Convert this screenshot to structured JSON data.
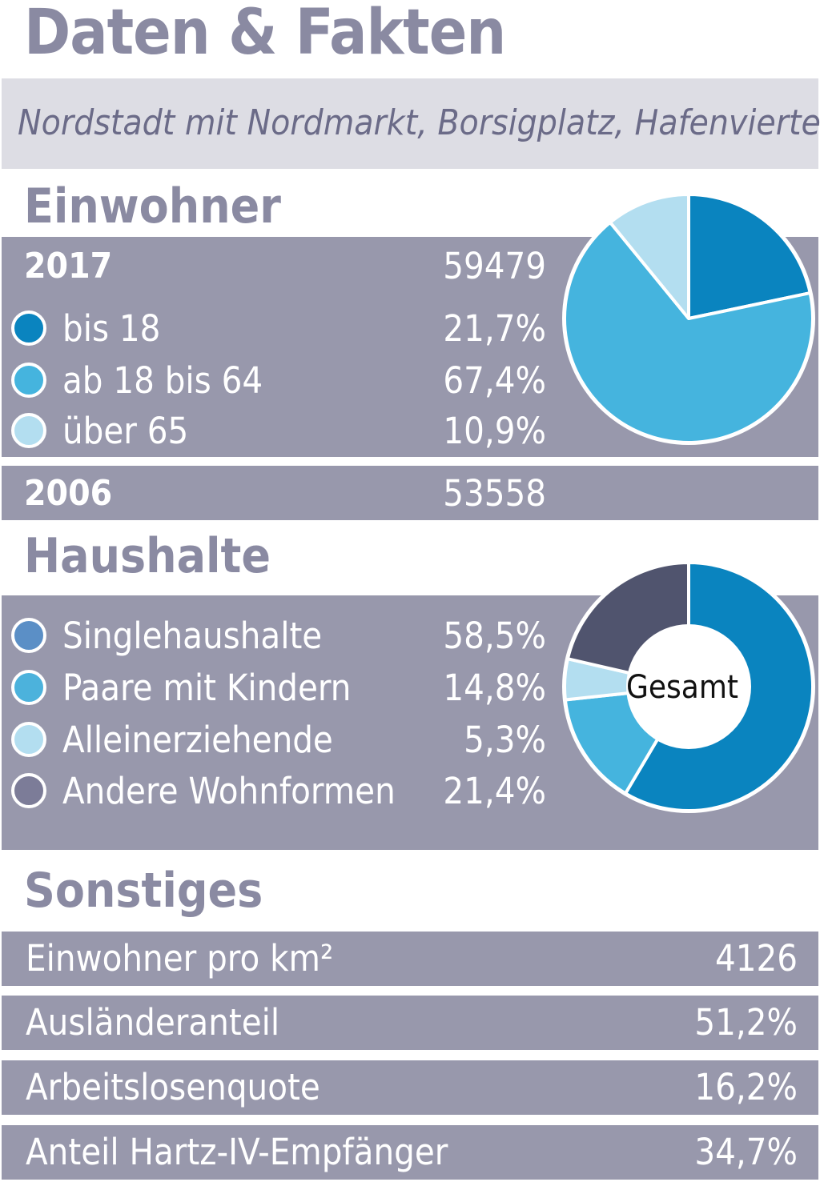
{
  "title": "Daten & Fakten",
  "subtitle": "Nordstadt mit Nordmarkt, Borsigplatz, Hafenviertel",
  "einwohner": {
    "heading": "Einwohner",
    "year_2017": {
      "label": "2017",
      "value": "59479"
    },
    "year_2006": {
      "label": "2006",
      "value": "53558"
    },
    "items": [
      {
        "label": "bis 18",
        "value": "21,7%",
        "color": "#0a84bf"
      },
      {
        "label": "ab 18 bis 64",
        "value": "67,4%",
        "color": "#45b4de"
      },
      {
        "label": "über 65",
        "value": "10,9%",
        "color": "#b3def0"
      }
    ]
  },
  "haushalte": {
    "heading": "Haushalte",
    "items": [
      {
        "label": "Singlehaushalte",
        "value": "58,5%",
        "color": "#5b8fc6"
      },
      {
        "label": "Paare mit Kindern",
        "value": "14,8%",
        "color": "#4cb2dc"
      },
      {
        "label": "Alleinerziehende",
        "value": "5,3%",
        "color": "#b3def0"
      },
      {
        "label": "Andere Wohnformen",
        "value": "21,4%",
        "color": "#7c7c98"
      }
    ],
    "center_label": "Gesamt"
  },
  "sonstiges": {
    "heading": "Sonstiges",
    "rows": [
      {
        "label": "Einwohner pro km²",
        "value": "4126"
      },
      {
        "label": "Ausländeranteil",
        "value": "51,2%"
      },
      {
        "label": "Arbeitslosenquote",
        "value": "16,2%"
      },
      {
        "label": "Anteil Hartz-IV-Empfänger",
        "value": "34,7%"
      }
    ]
  },
  "chart_data": [
    {
      "type": "pie",
      "title": "Einwohner 2017",
      "categories": [
        "bis 18",
        "ab 18 bis 64",
        "über 65"
      ],
      "values": [
        21.7,
        67.4,
        10.9
      ],
      "colors": [
        "#0a84bf",
        "#45b4de",
        "#b3def0"
      ]
    },
    {
      "type": "pie",
      "title": "Haushalte",
      "center_label": "Gesamt",
      "categories": [
        "Singlehaushalte",
        "Paare mit Kindern",
        "Alleinerziehende",
        "Andere Wohnformen"
      ],
      "values": [
        58.5,
        14.8,
        5.3,
        21.4
      ],
      "colors": [
        "#0a84bf",
        "#45b4de",
        "#b3def0",
        "#50546e"
      ]
    }
  ]
}
